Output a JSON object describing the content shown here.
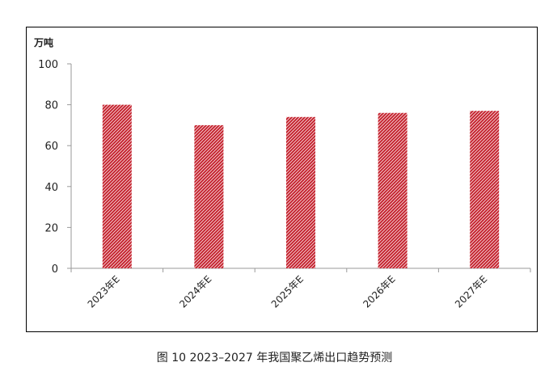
{
  "caption": "图 10  2023–2027 年我国聚乙烯出口趋势预测",
  "chart_data": {
    "type": "bar",
    "ylabel": "万吨",
    "categories": [
      "2023年E",
      "2024年E",
      "2025年E",
      "2026年E",
      "2027年E"
    ],
    "values": [
      80,
      70,
      74,
      76,
      77
    ],
    "ylim": [
      0,
      100
    ],
    "yticks": [
      0,
      20,
      40,
      60,
      80,
      100
    ],
    "grid": false,
    "legend": "none",
    "colors": {
      "bar": "#c4202c",
      "hatch": "#ffffff",
      "axis": "#9a9a9a",
      "text": "#222222"
    }
  }
}
